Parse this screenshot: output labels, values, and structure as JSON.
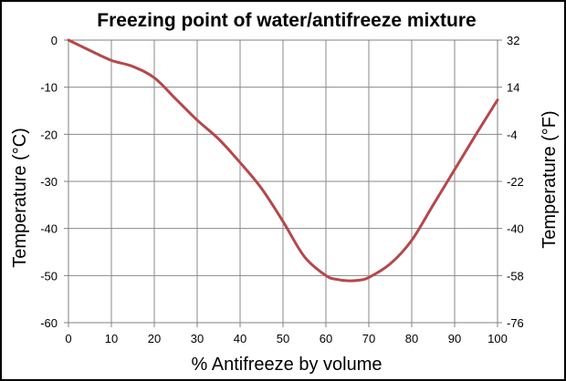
{
  "chart_data": {
    "type": "line",
    "title": "Freezing point of water/antifreeze mixture",
    "xlabel": "% Antifreeze by volume",
    "ylabel": "Temperature (°C)",
    "y2label": "Temperature (°F)",
    "xlim": [
      0,
      100
    ],
    "ylim": [
      -60,
      0
    ],
    "x_ticks": [
      "0",
      "10",
      "20",
      "30",
      "40",
      "50",
      "60",
      "70",
      "80",
      "90",
      "100"
    ],
    "y_ticks": [
      "0",
      "-10",
      "-20",
      "-30",
      "-40",
      "-50",
      "-60"
    ],
    "y2_ticks": [
      "32",
      "14",
      "-4",
      "-22",
      "-40",
      "-58",
      "-76"
    ],
    "grid": true,
    "series": [
      {
        "color": "#B5484A",
        "x": [
          0,
          5,
          10,
          15,
          20,
          25,
          30,
          35,
          40,
          45,
          50,
          55,
          60,
          62.5,
          65,
          67.5,
          70,
          75,
          80,
          85,
          90,
          95,
          100
        ],
        "y": [
          0,
          -2.2,
          -4.3,
          -5.6,
          -8.0,
          -12.5,
          -17.0,
          -21.0,
          -26.0,
          -31.5,
          -38.5,
          -46.0,
          -50.0,
          -50.8,
          -51.1,
          -51.0,
          -50.4,
          -47.5,
          -42.5,
          -35.0,
          -27.5,
          -20.0,
          -12.7
        ]
      }
    ]
  }
}
